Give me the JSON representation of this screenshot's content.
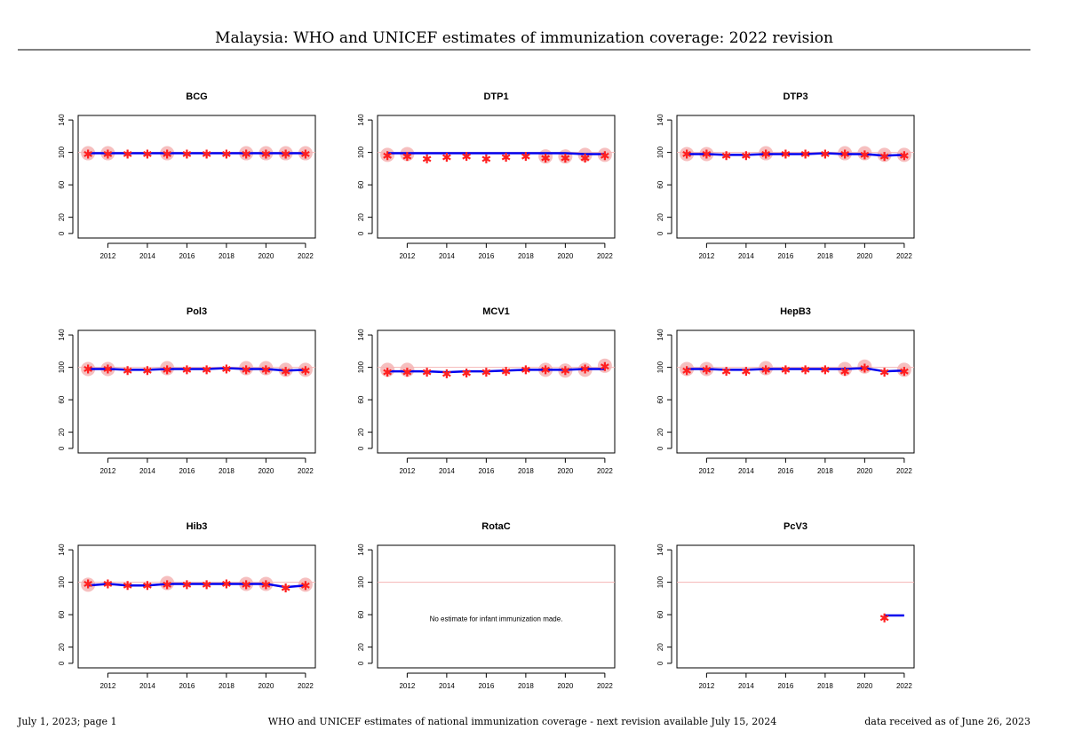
{
  "header": {
    "title": "Malaysia: WHO and UNICEF estimates of immunization coverage: 2022 revision"
  },
  "footer": {
    "left": "July 1, 2023; page 1",
    "center": "WHO and UNICEF estimates of national immunization coverage - next revision available July 15, 2024",
    "right": "data received as of June 26, 2023"
  },
  "chart_data": [
    {
      "type": "line",
      "title": "BCG",
      "x": [
        2011,
        2012,
        2013,
        2014,
        2015,
        2016,
        2017,
        2018,
        2019,
        2020,
        2021,
        2022
      ],
      "xlim": [
        2010.5,
        2022.5
      ],
      "xticks": [
        2012,
        2014,
        2016,
        2018,
        2020,
        2022
      ],
      "ylim": [
        -5.6,
        145.6
      ],
      "yticks": [
        0,
        20,
        60,
        100,
        140
      ],
      "refline": 100,
      "series": [
        {
          "marker": "circle",
          "color": "#f4b4b4",
          "values": [
            99,
            99,
            null,
            null,
            99,
            null,
            null,
            null,
            99,
            99,
            99,
            99
          ]
        },
        {
          "marker": "line",
          "color": "#0000ee",
          "values": [
            99,
            99,
            99,
            99,
            99,
            99,
            99,
            99,
            99,
            99,
            99,
            99
          ]
        },
        {
          "marker": "star",
          "color": "#ff2020",
          "values": [
            98,
            98,
            98,
            98,
            98,
            98,
            98,
            98,
            98,
            98,
            98,
            98
          ]
        }
      ]
    },
    {
      "type": "line",
      "title": "DTP1",
      "x": [
        2011,
        2012,
        2013,
        2014,
        2015,
        2016,
        2017,
        2018,
        2019,
        2020,
        2021,
        2022
      ],
      "xlim": [
        2010.5,
        2022.5
      ],
      "xticks": [
        2012,
        2014,
        2016,
        2018,
        2020,
        2022
      ],
      "ylim": [
        -5.6,
        145.6
      ],
      "yticks": [
        0,
        20,
        60,
        100,
        140
      ],
      "refline": 100,
      "series": [
        {
          "marker": "circle",
          "color": "#f4b4b4",
          "values": [
            97,
            98,
            null,
            null,
            null,
            null,
            null,
            null,
            95,
            95,
            97,
            97
          ]
        },
        {
          "marker": "line",
          "color": "#0000ee",
          "values": [
            99,
            99,
            99,
            99,
            99,
            99,
            99,
            99,
            99,
            99,
            98,
            98
          ]
        },
        {
          "marker": "star",
          "color": "#ff2020",
          "values": [
            96,
            95,
            92,
            94,
            95,
            92,
            94,
            95,
            93,
            93,
            93,
            96
          ]
        }
      ]
    },
    {
      "type": "line",
      "title": "DTP3",
      "x": [
        2011,
        2012,
        2013,
        2014,
        2015,
        2016,
        2017,
        2018,
        2019,
        2020,
        2021,
        2022
      ],
      "xlim": [
        2010.5,
        2022.5
      ],
      "xticks": [
        2012,
        2014,
        2016,
        2018,
        2020,
        2022
      ],
      "ylim": [
        -5.6,
        145.6
      ],
      "yticks": [
        0,
        20,
        60,
        100,
        140
      ],
      "refline": 100,
      "series": [
        {
          "marker": "circle",
          "color": "#f4b4b4",
          "values": [
            98,
            98,
            null,
            null,
            99,
            null,
            null,
            null,
            99,
            99,
            97,
            97
          ]
        },
        {
          "marker": "line",
          "color": "#0000ee",
          "values": [
            98,
            98,
            97,
            97,
            98,
            98,
            98,
            99,
            98,
            98,
            96,
            97
          ]
        },
        {
          "marker": "star",
          "color": "#ff2020",
          "values": [
            98,
            98,
            96,
            96,
            98,
            98,
            98,
            98,
            98,
            97,
            95,
            96
          ]
        }
      ]
    },
    {
      "type": "line",
      "title": "Pol3",
      "x": [
        2011,
        2012,
        2013,
        2014,
        2015,
        2016,
        2017,
        2018,
        2019,
        2020,
        2021,
        2022
      ],
      "xlim": [
        2010.5,
        2022.5
      ],
      "xticks": [
        2012,
        2014,
        2016,
        2018,
        2020,
        2022
      ],
      "ylim": [
        -5.6,
        145.6
      ],
      "yticks": [
        0,
        20,
        60,
        100,
        140
      ],
      "refline": 100,
      "series": [
        {
          "marker": "circle",
          "color": "#f4b4b4",
          "values": [
            98,
            98,
            null,
            null,
            99,
            null,
            null,
            null,
            99,
            99,
            97,
            97
          ]
        },
        {
          "marker": "line",
          "color": "#0000ee",
          "values": [
            98,
            98,
            97,
            97,
            98,
            98,
            98,
            99,
            98,
            98,
            96,
            97
          ]
        },
        {
          "marker": "star",
          "color": "#ff2020",
          "values": [
            98,
            98,
            96,
            96,
            97,
            97,
            97,
            98,
            97,
            97,
            95,
            96
          ]
        }
      ]
    },
    {
      "type": "line",
      "title": "MCV1",
      "x": [
        2011,
        2012,
        2013,
        2014,
        2015,
        2016,
        2017,
        2018,
        2019,
        2020,
        2021,
        2022
      ],
      "xlim": [
        2010.5,
        2022.5
      ],
      "xticks": [
        2012,
        2014,
        2016,
        2018,
        2020,
        2022
      ],
      "ylim": [
        -5.6,
        145.6
      ],
      "yticks": [
        0,
        20,
        60,
        100,
        140
      ],
      "refline": 100,
      "series": [
        {
          "marker": "circle",
          "color": "#f4b4b4",
          "values": [
            97,
            97,
            null,
            null,
            null,
            null,
            null,
            null,
            97,
            96,
            97,
            102
          ]
        },
        {
          "marker": "line",
          "color": "#0000ee",
          "values": [
            95,
            95,
            95,
            94,
            95,
            95,
            96,
            97,
            97,
            97,
            98,
            98
          ]
        },
        {
          "marker": "star",
          "color": "#ff2020",
          "values": [
            94,
            94,
            94,
            92,
            93,
            94,
            95,
            97,
            97,
            96,
            98,
            101
          ]
        }
      ]
    },
    {
      "type": "line",
      "title": "HepB3",
      "x": [
        2011,
        2012,
        2013,
        2014,
        2015,
        2016,
        2017,
        2018,
        2019,
        2020,
        2021,
        2022
      ],
      "xlim": [
        2010.5,
        2022.5
      ],
      "xticks": [
        2012,
        2014,
        2016,
        2018,
        2020,
        2022
      ],
      "ylim": [
        -5.6,
        145.6
      ],
      "yticks": [
        0,
        20,
        60,
        100,
        140
      ],
      "refline": 100,
      "series": [
        {
          "marker": "circle",
          "color": "#f4b4b4",
          "values": [
            98,
            98,
            null,
            null,
            99,
            null,
            null,
            null,
            98,
            101,
            null,
            97
          ]
        },
        {
          "marker": "line",
          "color": "#0000ee",
          "values": [
            98,
            98,
            97,
            97,
            98,
            98,
            98,
            98,
            98,
            99,
            95,
            96
          ]
        },
        {
          "marker": "star",
          "color": "#ff2020",
          "values": [
            96,
            97,
            95,
            95,
            97,
            97,
            97,
            97,
            95,
            99,
            94,
            95
          ]
        }
      ]
    },
    {
      "type": "line",
      "title": "Hib3",
      "x": [
        2011,
        2012,
        2013,
        2014,
        2015,
        2016,
        2017,
        2018,
        2019,
        2020,
        2021,
        2022
      ],
      "xlim": [
        2010.5,
        2022.5
      ],
      "xticks": [
        2012,
        2014,
        2016,
        2018,
        2020,
        2022
      ],
      "ylim": [
        -5.6,
        145.6
      ],
      "yticks": [
        0,
        20,
        60,
        100,
        140
      ],
      "refline": 100,
      "series": [
        {
          "marker": "circle",
          "color": "#f4b4b4",
          "values": [
            97,
            null,
            null,
            null,
            99,
            null,
            null,
            null,
            98,
            98,
            null,
            97
          ]
        },
        {
          "marker": "line",
          "color": "#0000ee",
          "values": [
            96,
            98,
            96,
            96,
            98,
            98,
            98,
            98,
            98,
            98,
            94,
            96
          ]
        },
        {
          "marker": "star",
          "color": "#ff2020",
          "values": [
            98,
            98,
            96,
            96,
            97,
            97,
            97,
            98,
            97,
            97,
            93,
            96
          ]
        }
      ]
    },
    {
      "type": "line",
      "title": "RotaC",
      "x": [
        2011,
        2012,
        2013,
        2014,
        2015,
        2016,
        2017,
        2018,
        2019,
        2020,
        2021,
        2022
      ],
      "xlim": [
        2010.5,
        2022.5
      ],
      "xticks": [
        2012,
        2014,
        2016,
        2018,
        2020,
        2022
      ],
      "ylim": [
        -5.6,
        145.6
      ],
      "yticks": [
        0,
        20,
        60,
        100,
        140
      ],
      "refline": 100,
      "annotation": "No estimate for infant immunization made.",
      "series": []
    },
    {
      "type": "line",
      "title": "PcV3",
      "x": [
        2011,
        2012,
        2013,
        2014,
        2015,
        2016,
        2017,
        2018,
        2019,
        2020,
        2021,
        2022
      ],
      "xlim": [
        2010.5,
        2022.5
      ],
      "xticks": [
        2012,
        2014,
        2016,
        2018,
        2020,
        2022
      ],
      "ylim": [
        -5.6,
        145.6
      ],
      "yticks": [
        0,
        20,
        60,
        100,
        140
      ],
      "refline": 100,
      "series": [
        {
          "marker": "line",
          "color": "#0000ee",
          "values": [
            null,
            null,
            null,
            null,
            null,
            null,
            null,
            null,
            null,
            null,
            59,
            59
          ]
        },
        {
          "marker": "star",
          "color": "#ff2020",
          "values": [
            null,
            null,
            null,
            null,
            null,
            null,
            null,
            null,
            null,
            null,
            56,
            null
          ]
        }
      ]
    }
  ]
}
